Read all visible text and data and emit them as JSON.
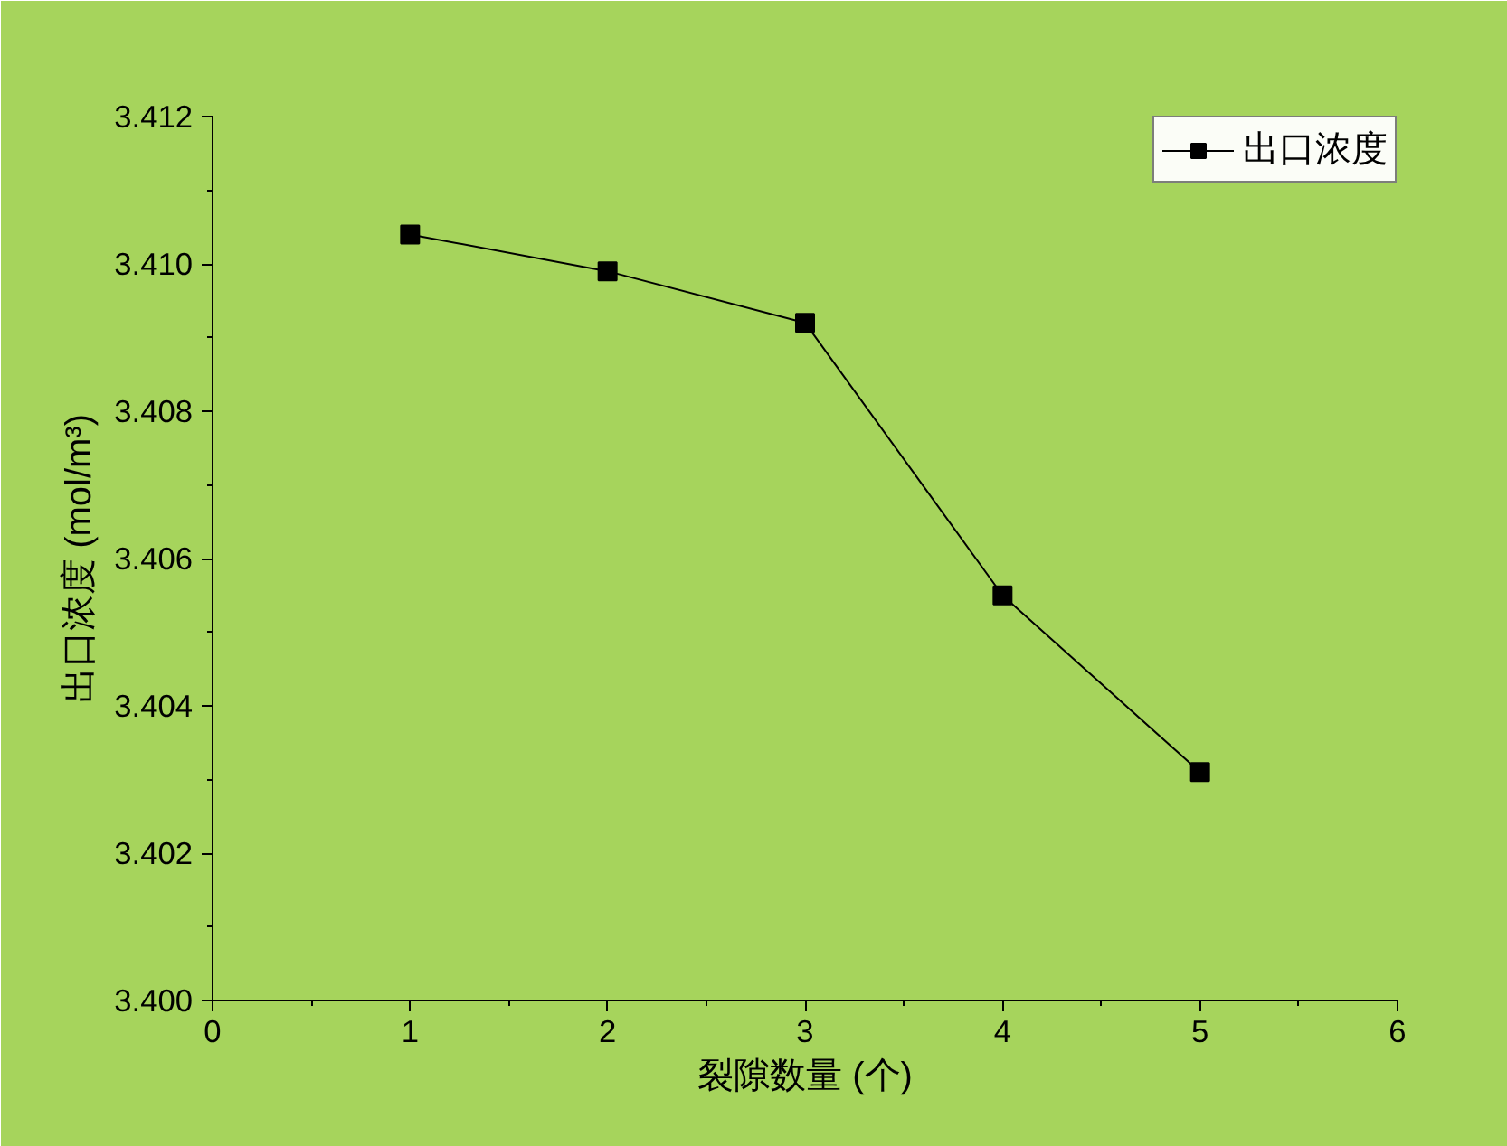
{
  "chart_data": {
    "type": "line",
    "xlabel": "裂隙数量 (个)",
    "ylabel": "出口浓度 (mol/m³)",
    "x": [
      1,
      2,
      3,
      4,
      5
    ],
    "series": [
      {
        "name": "出口浓度",
        "color": "#000000",
        "values": [
          3.4104,
          3.4099,
          3.4092,
          3.4055,
          3.4031
        ]
      }
    ],
    "xlim": [
      0,
      6
    ],
    "xticks": [
      0,
      1,
      2,
      3,
      4,
      5,
      6
    ],
    "ylim": [
      3.4,
      3.412
    ],
    "yticks": [
      {
        "value": 3.4,
        "label": "3.400"
      },
      {
        "value": 3.402,
        "label": "3.402"
      },
      {
        "value": 3.404,
        "label": "3.404"
      },
      {
        "value": 3.406,
        "label": "3.406"
      },
      {
        "value": 3.408,
        "label": "3.408"
      },
      {
        "value": 3.41,
        "label": "3.410"
      },
      {
        "value": 3.412,
        "label": "3.412"
      }
    ],
    "marker": "square",
    "line_style": "solid",
    "legend": "top right",
    "grid": false
  }
}
